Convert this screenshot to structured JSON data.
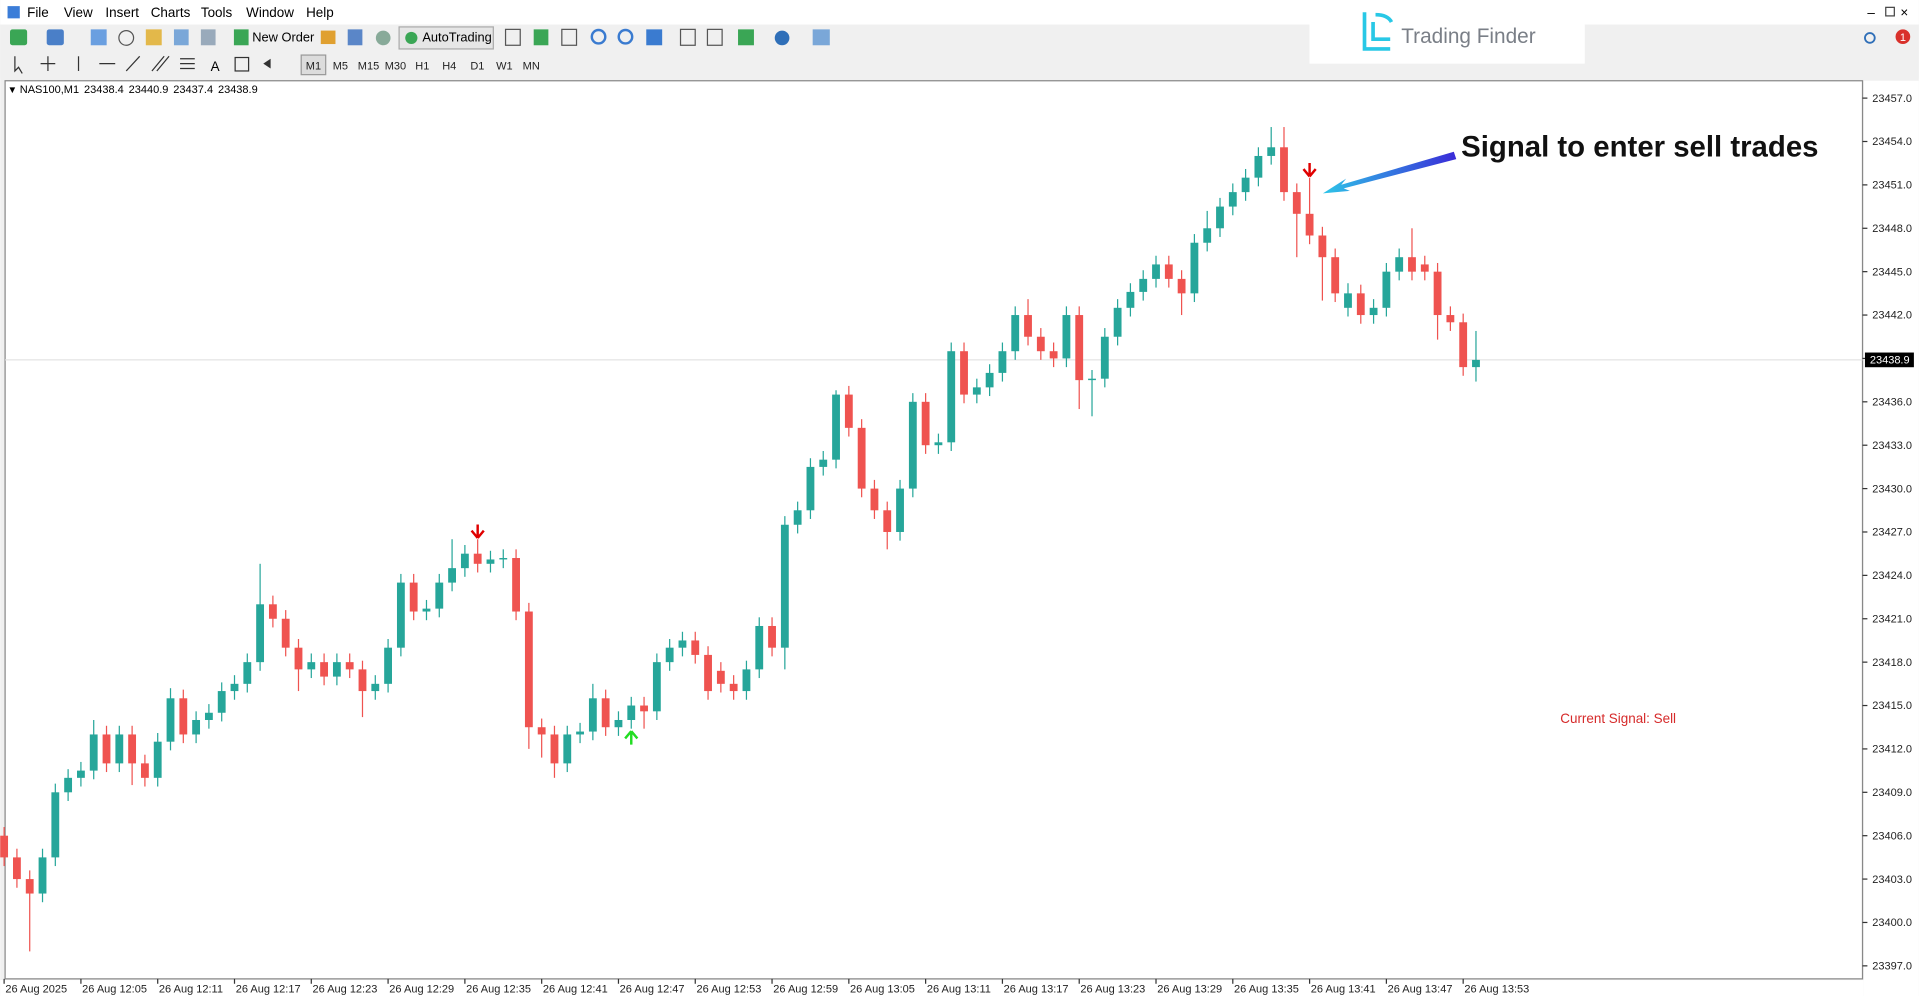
{
  "menu": [
    "File",
    "View",
    "Insert",
    "Charts",
    "Tools",
    "Window",
    "Help"
  ],
  "toolbar": {
    "new_order": "New Order",
    "auto_trading": "AutoTrading",
    "timeframes": [
      "M1",
      "M5",
      "M15",
      "M30",
      "H1",
      "H4",
      "D1",
      "W1",
      "MN"
    ]
  },
  "logo": "Trading Finder",
  "notification_count": "1",
  "chart_data": {
    "type": "candlestick",
    "symbol": "NAS100,M1",
    "annotations": [
      "Signal to enter sell trades",
      "Current Signal: Sell"
    ],
    "up_color": "#26a69a",
    "down_color": "#ef5350",
    "signal_sell_color": "#e00000",
    "signal_buy_color": "#22dd22",
    "categories": [
      "26 Aug 2025",
      null,
      null,
      null,
      null,
      null,
      "26 Aug 12:05",
      null,
      null,
      null,
      null,
      null,
      "26 Aug 12:11",
      null,
      null,
      null,
      null,
      null,
      "26 Aug 12:17",
      null,
      null,
      null,
      null,
      null,
      "26 Aug 12:23",
      null,
      null,
      null,
      null,
      null,
      "26 Aug 12:29",
      null,
      null,
      null,
      null,
      null,
      "26 Aug 12:35",
      null,
      null,
      null,
      null,
      null,
      "26 Aug 12:41",
      null,
      null,
      null,
      null,
      null,
      "26 Aug 12:47",
      null,
      null,
      null,
      null,
      null,
      "26 Aug 12:53",
      null,
      null,
      null,
      null,
      null,
      "26 Aug 12:59",
      null,
      null,
      null,
      null,
      null,
      "26 Aug 13:05",
      null,
      null,
      null,
      null,
      null,
      "26 Aug 13:11",
      null,
      null,
      null,
      null,
      null,
      "26 Aug 13:17",
      null,
      null,
      null,
      null,
      null,
      "26 Aug 13:23",
      null,
      null,
      null,
      null,
      null,
      "26 Aug 13:29",
      null,
      null,
      null,
      null,
      null,
      "26 Aug 13:35",
      null,
      null,
      null,
      null,
      null,
      "26 Aug 13:41",
      null,
      null,
      null,
      null,
      null,
      "26 Aug 13:47",
      null,
      null,
      null,
      null,
      null,
      "26 Aug 13:53",
      null
    ],
    "open": [
      23406,
      23404.5,
      23403,
      23402,
      23404.5,
      23409,
      23410,
      23410.5,
      23413,
      23411,
      23413,
      23411,
      23410,
      23412.5,
      23415.5,
      23413,
      23414,
      23414.5,
      23416,
      23416.5,
      23418,
      23422,
      23421,
      23419,
      23417.5,
      23418,
      23417,
      23418,
      23417.5,
      23416,
      23416.5,
      23419,
      23423.5,
      23421.5,
      23421.7,
      23423.5,
      23424.5,
      23425.5,
      23424.8,
      23425.1,
      23425.2,
      23421.5,
      23413.5,
      23413,
      23411,
      23413,
      23413.2,
      23415.5,
      23413.5,
      23414,
      23415,
      23414.6,
      23418,
      23419,
      23419.5,
      23418.5,
      23417.4,
      23416.5,
      23416,
      23417.5,
      23420.5,
      23419,
      23427.5,
      23428.5,
      23431.5,
      23432,
      23436.5,
      23434.2,
      23430,
      23428.5,
      23427,
      23430,
      23436,
      23433,
      23433.2,
      23439.5,
      23436.5,
      23437,
      23438,
      23439.5,
      23442,
      23440.5,
      23439.5,
      23439,
      23442,
      23437.5,
      23437.6,
      23440.5,
      23442.5,
      23443.6,
      23444.5,
      23445.5,
      23444.5,
      23443.5,
      23447,
      23448,
      23449.5,
      23450.5,
      23451.5,
      23453,
      23453.6,
      23450.5,
      23449,
      23447.5,
      23446,
      23442.5,
      23443.5,
      23442,
      23442.5,
      23445,
      23446,
      23445.5,
      23445,
      23442,
      23441.5,
      23438.4
    ],
    "high": [
      23406.6,
      23405.1,
      23403.6,
      23405.1,
      23409.6,
      23410.6,
      23411.1,
      23414.0,
      23413.6,
      23413.6,
      23413.6,
      23411.6,
      23413.1,
      23416.2,
      23416.1,
      23414.6,
      23415.1,
      23416.6,
      23417.1,
      23418.6,
      23424.8,
      23422.6,
      23421.6,
      23419.6,
      23418.6,
      23418.6,
      23418.6,
      23418.6,
      23418.1,
      23417.1,
      23419.6,
      23424.1,
      23424.1,
      23422.3,
      23424.1,
      23426.5,
      23426.1,
      23426.5,
      23425.7,
      23425.8,
      23425.8,
      23422.1,
      23414.1,
      23413.6,
      23413.6,
      23413.8,
      23416.5,
      23416.1,
      23414.6,
      23415.6,
      23415.6,
      23418.6,
      23419.6,
      23420.1,
      23420.1,
      23419.1,
      23418.0,
      23417.1,
      23418.1,
      23421.1,
      23421.1,
      23428.1,
      23429.1,
      23432.1,
      23432.6,
      23436.8,
      23437.1,
      23434.8,
      23430.6,
      23429.1,
      23430.6,
      23436.6,
      23436.6,
      23433.8,
      23440.1,
      23440.1,
      23437.6,
      23438.6,
      23440.1,
      23442.6,
      23443.1,
      23441.1,
      23440.1,
      23442.6,
      23442.6,
      23438.2,
      23441.1,
      23443.1,
      23444.2,
      23445.1,
      23446.1,
      23446.1,
      23445.1,
      23447.6,
      23449.2,
      23450.1,
      23451.1,
      23452.1,
      23453.6,
      23455.0,
      23455.0,
      23451.1,
      23451.5,
      23448.1,
      23446.6,
      23444.2,
      23444.1,
      23443.1,
      23445.6,
      23446.6,
      23448.0,
      23446.1,
      23445.6,
      23442.6,
      23442.1,
      23440.9
    ],
    "low": [
      23403.9,
      23402.4,
      23398.0,
      23401.4,
      23403.9,
      23408.4,
      23409.4,
      23409.9,
      23410.4,
      23410.4,
      23409.5,
      23409.4,
      23409.4,
      23411.9,
      23412.4,
      23412.4,
      23413.4,
      23413.9,
      23415.4,
      23415.9,
      23417.4,
      23420.4,
      23418.4,
      23416.0,
      23416.9,
      23416.4,
      23416.4,
      23416.9,
      23414.2,
      23415.4,
      23415.9,
      23418.4,
      23420.9,
      23420.9,
      23421.1,
      23422.9,
      23423.9,
      23424.2,
      23424.2,
      23424.5,
      23420.9,
      23412.0,
      23411.4,
      23410.0,
      23410.4,
      23412.4,
      23412.6,
      23412.9,
      23412.9,
      23413.4,
      23413.4,
      23414.0,
      23417.4,
      23418.4,
      23417.9,
      23415.4,
      23415.9,
      23415.4,
      23415.4,
      23416.9,
      23418.4,
      23417.5,
      23426.9,
      23427.9,
      23430.9,
      23431.4,
      23433.6,
      23429.4,
      23427.9,
      23425.8,
      23426.4,
      23429.4,
      23432.4,
      23432.4,
      23432.6,
      23435.9,
      23435.9,
      23436.4,
      23437.4,
      23438.9,
      23439.9,
      23438.9,
      23438.4,
      23438.4,
      23435.5,
      23435.0,
      23437.0,
      23439.9,
      23441.9,
      23443.0,
      23443.9,
      23443.9,
      23442.0,
      23442.9,
      23446.4,
      23447.4,
      23448.9,
      23449.9,
      23450.9,
      23452.4,
      23449.9,
      23446.0,
      23446.9,
      23443.0,
      23442.9,
      23441.9,
      23441.4,
      23441.4,
      23441.9,
      23444.4,
      23444.4,
      23444.4,
      23440.3,
      23440.9,
      23437.8,
      23437.4
    ],
    "close": [
      23404.5,
      23403,
      23402,
      23404.5,
      23409,
      23410,
      23410.5,
      23413,
      23411,
      23413,
      23411,
      23410,
      23412.5,
      23415.5,
      23413,
      23414,
      23414.5,
      23416,
      23416.5,
      23418,
      23422,
      23421,
      23419,
      23417.5,
      23418,
      23417,
      23418,
      23417.5,
      23416,
      23416.5,
      23419,
      23423.5,
      23421.5,
      23421.7,
      23423.5,
      23424.5,
      23425.5,
      23424.8,
      23425.1,
      23425.2,
      23421.5,
      23413.5,
      23413,
      23411,
      23413,
      23413.2,
      23415.5,
      23413.5,
      23414,
      23415,
      23414.6,
      23418,
      23419,
      23419.5,
      23418.5,
      23416,
      23416.5,
      23416,
      23417.5,
      23420.5,
      23419,
      23427.5,
      23428.5,
      23431.5,
      23432,
      23436.5,
      23434.2,
      23430,
      23428.5,
      23427,
      23430,
      23436,
      23433,
      23433.2,
      23439.5,
      23436.5,
      23437,
      23438,
      23439.5,
      23442,
      23440.5,
      23439.5,
      23439,
      23442,
      23437.5,
      23437.6,
      23440.5,
      23442.5,
      23443.6,
      23444.5,
      23445.5,
      23444.5,
      23443.5,
      23447,
      23448,
      23449.5,
      23450.5,
      23451.5,
      23453,
      23453.6,
      23450.5,
      23449,
      23447.5,
      23446,
      23443.5,
      23443.5,
      23442,
      23442.5,
      23445,
      23446,
      23445,
      23445,
      23442,
      23441.5,
      23438.4,
      23438.9
    ],
    "ylim": [
      23396.1,
      23458.2
    ],
    "yticks": [
      {
        "value": 23397,
        "label": "23397.0"
      },
      {
        "value": 23400,
        "label": "23400.0"
      },
      {
        "value": 23403,
        "label": "23403.0"
      },
      {
        "value": 23406,
        "label": "23406.0"
      },
      {
        "value": 23409,
        "label": "23409.0"
      },
      {
        "value": 23412,
        "label": "23412.0"
      },
      {
        "value": 23415,
        "label": "23415.0"
      },
      {
        "value": 23418,
        "label": "23418.0"
      },
      {
        "value": 23421,
        "label": "23421.0"
      },
      {
        "value": 23424,
        "label": "23424.0"
      },
      {
        "value": 23427,
        "label": "23427.0"
      },
      {
        "value": 23430,
        "label": "23430.0"
      },
      {
        "value": 23433,
        "label": "23433.0"
      },
      {
        "value": 23436,
        "label": "23436.0"
      },
      {
        "value": 23439,
        "label": "23439.0"
      },
      {
        "value": 23442,
        "label": "23442.0"
      },
      {
        "value": 23445,
        "label": "23445.0"
      },
      {
        "value": 23448,
        "label": "23448.0"
      },
      {
        "value": 23451,
        "label": "23451.0"
      },
      {
        "value": 23454,
        "label": "23454.0"
      },
      {
        "value": 23457,
        "label": "23457.0"
      }
    ]
  }
}
